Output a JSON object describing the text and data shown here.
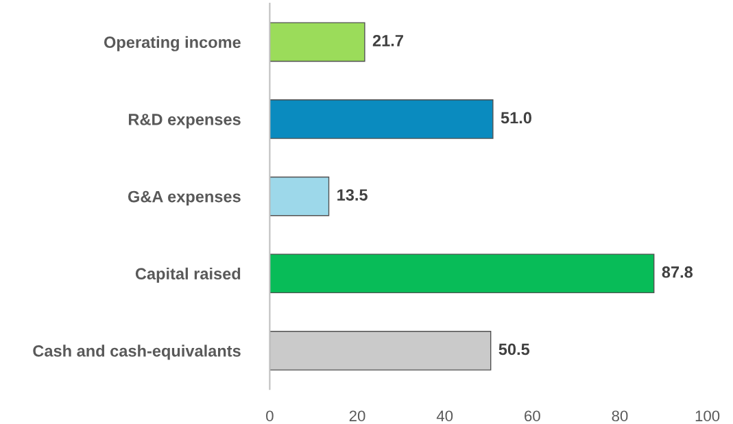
{
  "chart_data": {
    "type": "bar",
    "orientation": "horizontal",
    "categories": [
      "Operating income",
      "R&D expenses",
      "G&A expenses",
      "Capital raised",
      "Cash and cash-equivalants"
    ],
    "values": [
      21.7,
      51.0,
      13.5,
      87.8,
      50.5
    ],
    "value_labels": [
      "21.7",
      "51.0",
      "13.5",
      "87.8",
      "50.5"
    ],
    "colors": [
      "#9bdc5a",
      "#0a8bbf",
      "#9dd8ea",
      "#08bc58",
      "#cacaca"
    ],
    "xlim": [
      0,
      100
    ],
    "xticks": [
      0,
      20,
      40,
      60,
      80,
      100
    ],
    "grid": false,
    "legend": false
  }
}
